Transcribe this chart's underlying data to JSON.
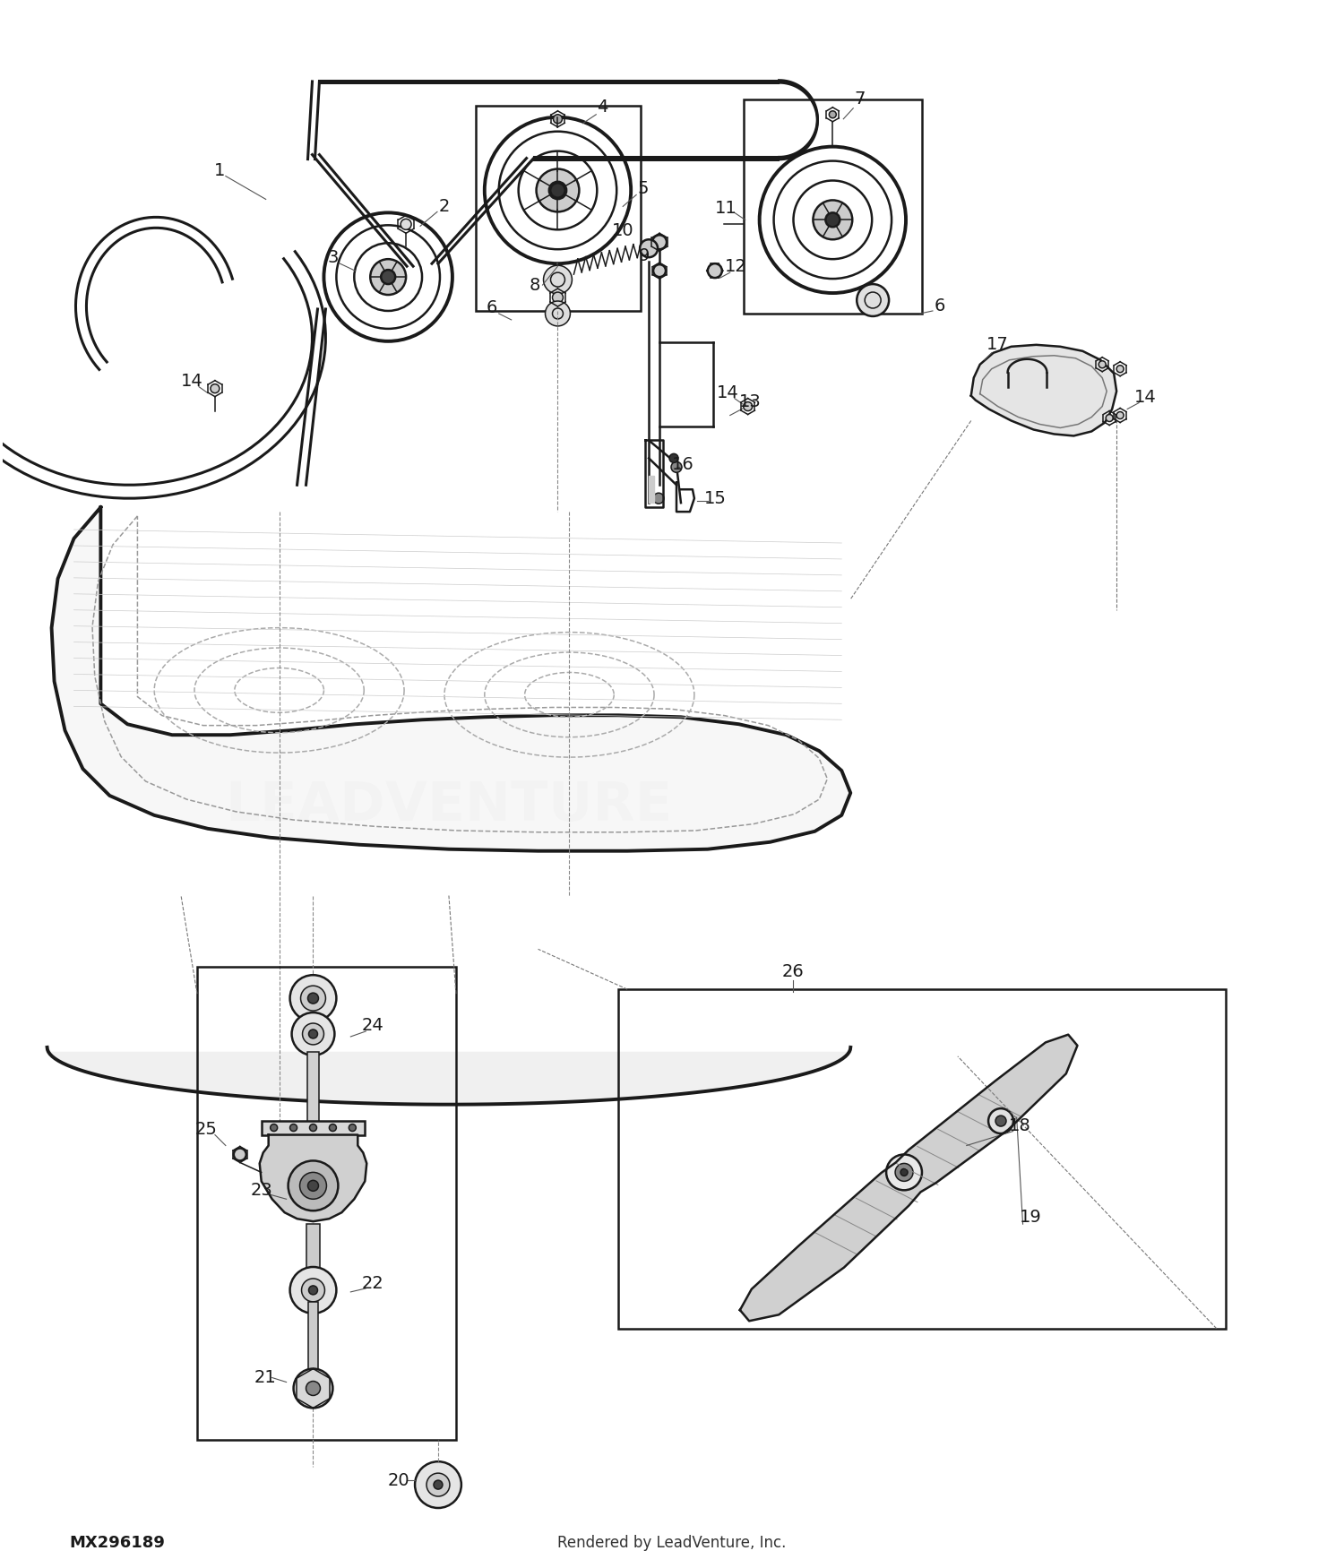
{
  "bg_color": "#ffffff",
  "line_color": "#1a1a1a",
  "footer_left": "MX296189",
  "footer_right": "Rendered by LeadVenture, Inc.",
  "watermark": "LEADVENTURE"
}
